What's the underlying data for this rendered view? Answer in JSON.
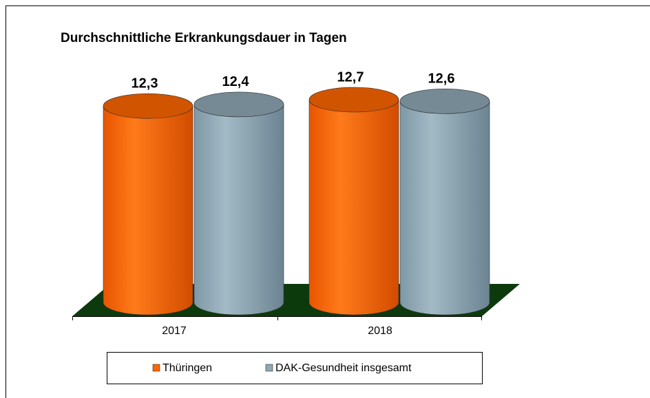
{
  "chart_data": {
    "type": "bar",
    "title": "Durchschnittliche Erkrankungsdauer in Tagen",
    "categories": [
      "2017",
      "2018"
    ],
    "series": [
      {
        "name": "Thüringen",
        "color": "#ff6600",
        "values": [
          12.3,
          12.7
        ],
        "value_labels": [
          "12,3",
          "12,7"
        ]
      },
      {
        "name": "DAK-Gesundheit insgesamt",
        "color": "#8fa8b6",
        "values": [
          12.4,
          12.6
        ],
        "value_labels": [
          "12,4",
          "12,6"
        ]
      }
    ]
  }
}
